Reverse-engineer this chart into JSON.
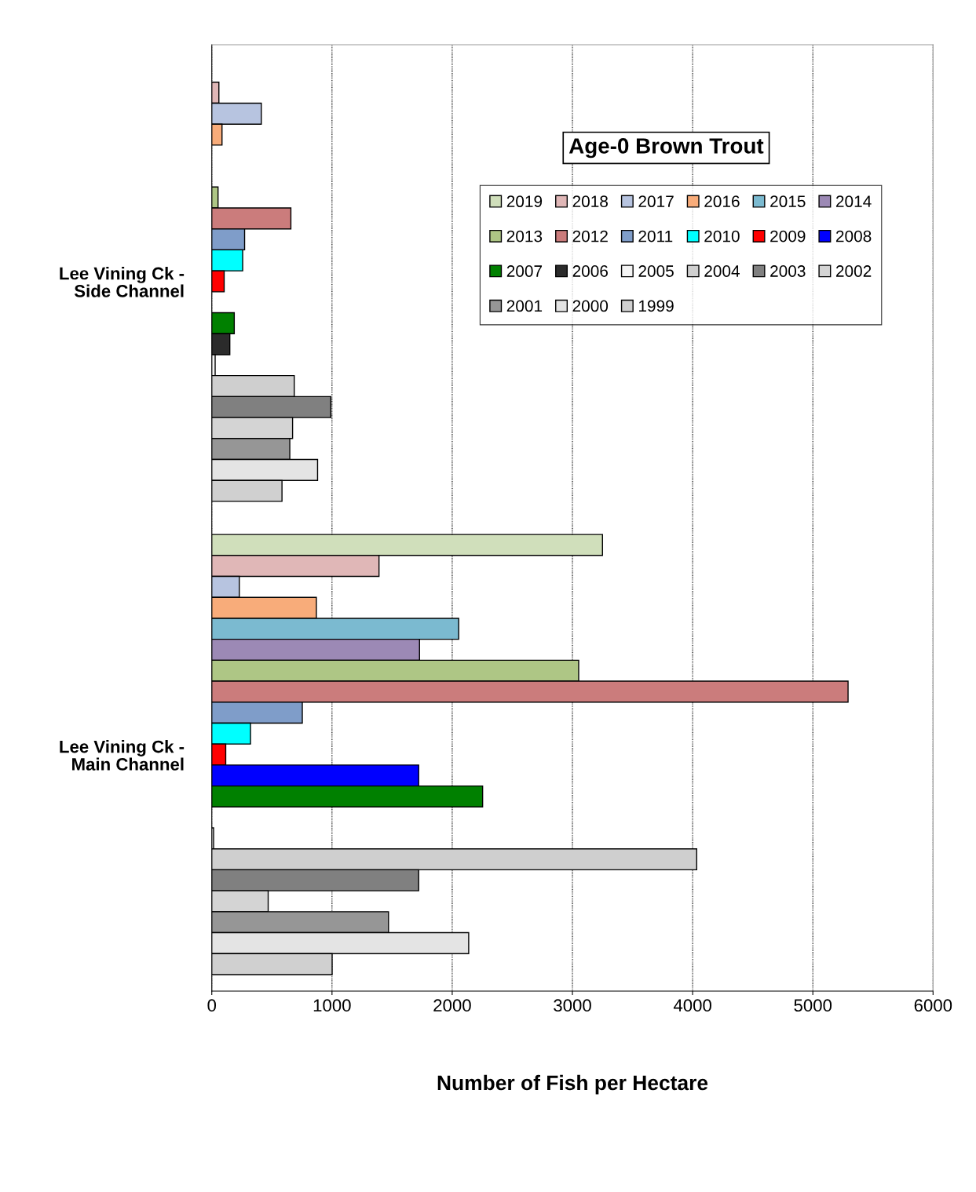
{
  "chart_data": {
    "type": "bar",
    "orientation": "horizontal",
    "title": "Age-0 Brown Trout",
    "xlabel": "Number of Fish per Hectare",
    "categories": [
      "Lee Vining Ck -\nSide Channel",
      "Lee Vining Ck -\nMain Channel"
    ],
    "series": [
      {
        "name": "2019",
        "color": "#d0dfbb",
        "values": [
          null,
          3250
        ]
      },
      {
        "name": "2018",
        "color": "#e0b7b7",
        "values": [
          59,
          1391
        ]
      },
      {
        "name": "2017",
        "color": "#b7c4e0",
        "values": [
          412,
          229
        ]
      },
      {
        "name": "2016",
        "color": "#f8ac7a",
        "values": [
          85,
          870
        ]
      },
      {
        "name": "2015",
        "color": "#7bbad0",
        "values": [
          null,
          2054
        ]
      },
      {
        "name": "2014",
        "color": "#9c89b5",
        "values": [
          null,
          1728
        ]
      },
      {
        "name": "2013",
        "color": "#aec685",
        "values": [
          52,
          3052
        ]
      },
      {
        "name": "2012",
        "color": "#cb7c7c",
        "values": [
          658,
          5293
        ]
      },
      {
        "name": "2011",
        "color": "#7f9dc9",
        "values": [
          273,
          753
        ]
      },
      {
        "name": "2010",
        "color": "#00ffff",
        "values": [
          257,
          322
        ]
      },
      {
        "name": "2009",
        "color": "#ff0000",
        "values": [
          103,
          116
        ]
      },
      {
        "name": "2008",
        "color": "#0000ff",
        "values": [
          null,
          1721
        ]
      },
      {
        "name": "2007",
        "color": "#008000",
        "values": [
          187,
          2253
        ]
      },
      {
        "name": "2006",
        "color": "#2b2b2b",
        "values": [
          150,
          null
        ]
      },
      {
        "name": "2005",
        "color": "#f4f4f4",
        "values": [
          28,
          15
        ]
      },
      {
        "name": "2004",
        "color": "#cfcfcf",
        "values": [
          686,
          4034
        ]
      },
      {
        "name": "2003",
        "color": "#808080",
        "values": [
          990,
          1721
        ]
      },
      {
        "name": "2002",
        "color": "#d4d4d4",
        "values": [
          672,
          469
        ]
      },
      {
        "name": "2001",
        "color": "#969696",
        "values": [
          649,
          1470
        ]
      },
      {
        "name": "2000",
        "color": "#e4e4e4",
        "values": [
          880,
          2137
        ]
      },
      {
        "name": "1999",
        "color": "#d0d0d0",
        "values": [
          584,
          1001
        ]
      }
    ],
    "xlim": [
      0,
      6000
    ],
    "xticks": [
      0,
      1000,
      2000,
      3000,
      4000,
      5000,
      6000
    ],
    "grid": "x",
    "legend": "top right"
  }
}
